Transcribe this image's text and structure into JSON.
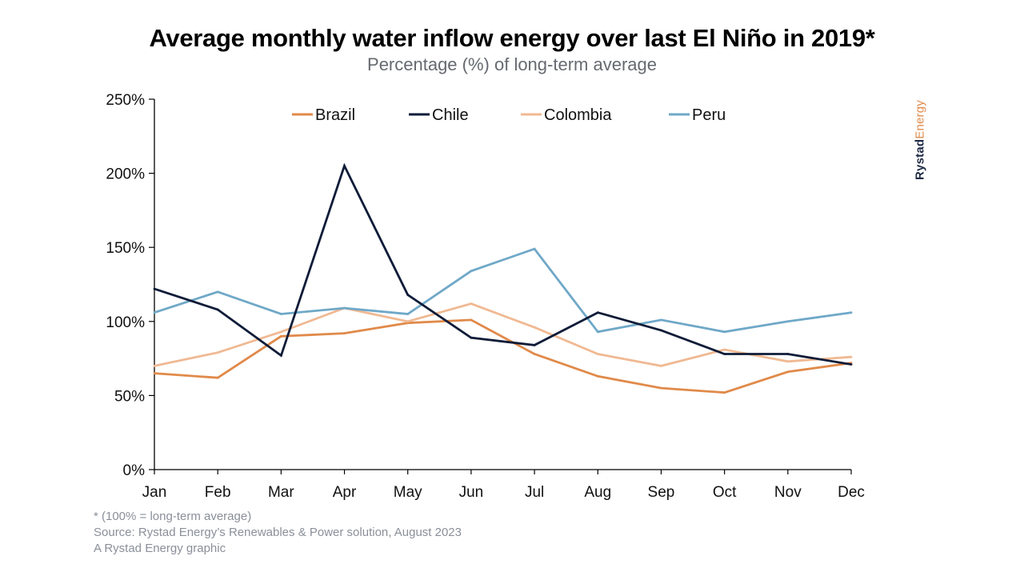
{
  "chart_data": {
    "type": "line",
    "title": "Average monthly water inflow energy over last El Niño in 2019*",
    "subtitle": "Percentage (%) of long-term average",
    "categories": [
      "Jan",
      "Feb",
      "Mar",
      "Apr",
      "May",
      "Jun",
      "Jul",
      "Aug",
      "Sep",
      "Oct",
      "Nov",
      "Dec"
    ],
    "y_ticks": [
      "0%",
      "50%",
      "100%",
      "150%",
      "200%",
      "250%"
    ],
    "ylim": [
      0,
      250
    ],
    "legend_position": "top-center",
    "grid": false,
    "series": [
      {
        "name": "Brazil",
        "color": "#e08a4a",
        "values": [
          65,
          62,
          90,
          92,
          99,
          101,
          78,
          63,
          55,
          52,
          66,
          72
        ]
      },
      {
        "name": "Chile",
        "color": "#0e1c38",
        "values": [
          122,
          108,
          77,
          205,
          118,
          89,
          84,
          106,
          94,
          78,
          78,
          71
        ]
      },
      {
        "name": "Colombia",
        "color": "#f0b993",
        "values": [
          70,
          79,
          93,
          109,
          100,
          112,
          96,
          78,
          70,
          81,
          73,
          76
        ]
      },
      {
        "name": "Peru",
        "color": "#6fa8c8",
        "values": [
          106,
          120,
          105,
          109,
          105,
          134,
          149,
          93,
          101,
          93,
          100,
          106
        ]
      }
    ]
  },
  "footnotes": [
    "* (100% = long-term average)",
    "Source: Rystad Energy’s Renewables & Power solution, August 2023",
    "A Rystad Energy graphic"
  ],
  "brand": {
    "part1": "Rystad",
    "part2": "Energy"
  }
}
